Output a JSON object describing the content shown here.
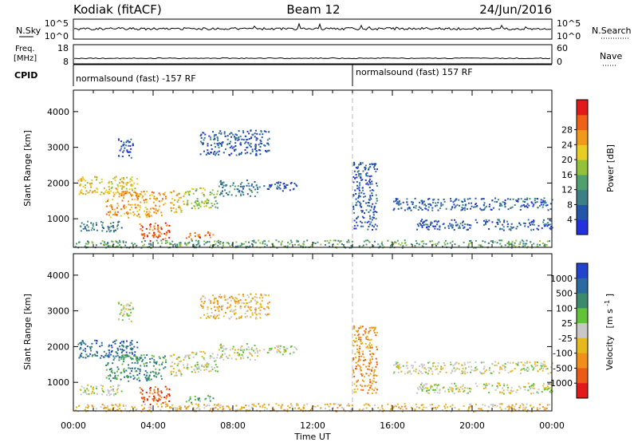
{
  "header": {
    "station": "Kodiak (fitACF)",
    "beam": "Beam 12",
    "date": "24/Jun/2016"
  },
  "strips": {
    "nsky": {
      "label": "N.Sky",
      "ticks_left": [
        "10^5",
        "10^0"
      ],
      "ticks_right": [
        "10^5",
        "10^0"
      ],
      "right_label": "N.Search"
    },
    "freq": {
      "label_line1": "Freq.",
      "label_line2": "[MHz]",
      "ticks_left": [
        "18",
        "8"
      ],
      "ticks_right": [
        "60",
        "0"
      ],
      "right_label": "Nave"
    },
    "cpid": {
      "label": "CPID",
      "segment1": "normalsound (fast) -157 RF",
      "segment2": "normalsound (fast) 157 RF"
    }
  },
  "time_axis": {
    "label": "Time UT",
    "ticks": [
      "00:00",
      "04:00",
      "08:00",
      "12:00",
      "16:00",
      "20:00",
      "00:00"
    ],
    "hours": [
      0,
      4,
      8,
      12,
      16,
      20,
      24
    ],
    "cpid_change_hour": 14
  },
  "chart_data": [
    {
      "type": "heatmap",
      "name": "power",
      "ylabel": "Slant Range [km]",
      "xlim": [
        0,
        24
      ],
      "ylim": [
        200,
        4600
      ],
      "yticks": [
        1000,
        2000,
        3000,
        4000
      ],
      "colorbar": {
        "label": "Power [dB]",
        "ticks": [
          "4",
          "8",
          "12",
          "16",
          "20",
          "24",
          "28"
        ],
        "colors": [
          "#2233dd",
          "#2255aa",
          "#3d7f86",
          "#4fa06c",
          "#93c23a",
          "#e7cd24",
          "#f09a1c",
          "#ef6018",
          "#e31a1c"
        ]
      },
      "features": [
        {
          "t0": 0.2,
          "t1": 3.2,
          "r0": 1700,
          "r1": 2200,
          "level": 5
        },
        {
          "t0": 1.6,
          "t1": 4.6,
          "r0": 1050,
          "r1": 1800,
          "level": 6
        },
        {
          "t0": 3.2,
          "t1": 4.8,
          "r0": 400,
          "r1": 900,
          "level": 7
        },
        {
          "t0": 4.8,
          "t1": 5.6,
          "r0": 1200,
          "r1": 1800,
          "level": 5
        },
        {
          "t0": 5.6,
          "t1": 7.2,
          "r0": 1300,
          "r1": 1900,
          "level": 4
        },
        {
          "t0": 7.2,
          "t1": 9.2,
          "r0": 1650,
          "r1": 2100,
          "level": 2
        },
        {
          "t0": 9.2,
          "t1": 11.2,
          "r0": 1800,
          "r1": 2050,
          "level": 1
        },
        {
          "t0": 5.6,
          "t1": 7.0,
          "r0": 450,
          "r1": 650,
          "level": 7
        },
        {
          "t0": 0.2,
          "t1": 2.4,
          "r0": 650,
          "r1": 950,
          "level": 2
        },
        {
          "t0": 6.3,
          "t1": 9.8,
          "r0": 2800,
          "r1": 3500,
          "level": 1
        },
        {
          "t0": 2.2,
          "t1": 3.0,
          "r0": 2700,
          "r1": 3300,
          "level": 1
        },
        {
          "t0": 14.0,
          "t1": 15.2,
          "r0": 700,
          "r1": 2600,
          "level": 1
        },
        {
          "t0": 16.0,
          "t1": 24.0,
          "r0": 1250,
          "r1": 1600,
          "level": 1
        },
        {
          "t0": 17.2,
          "t1": 24.0,
          "r0": 700,
          "r1": 1000,
          "level": 1
        },
        {
          "t0": 0.0,
          "t1": 24.0,
          "r0": 200,
          "r1": 420,
          "level": 3
        }
      ]
    },
    {
      "type": "heatmap",
      "name": "velocity",
      "ylabel": "Slant Range [km]",
      "xlim": [
        0,
        24
      ],
      "ylim": [
        200,
        4600
      ],
      "yticks": [
        1000,
        2000,
        3000,
        4000
      ],
      "colorbar": {
        "label_main": "Velocity",
        "label_unit": "[m s",
        "label_exp": "-1",
        "label_close": "]",
        "ticks": [
          "1000",
          "500",
          "100",
          "25",
          "-25",
          "-100",
          "-500",
          "-1000"
        ],
        "colors": [
          "#2244cc",
          "#2a6aa0",
          "#3b8a6e",
          "#63c23a",
          "#c8c8c8",
          "#e5b81c",
          "#f0901a",
          "#ec5a18",
          "#e31a1c"
        ]
      },
      "features": [
        {
          "t0": 0.2,
          "t1": 3.2,
          "r0": 1700,
          "r1": 2200,
          "level": 1
        },
        {
          "t0": 1.6,
          "t1": 4.6,
          "r0": 1050,
          "r1": 1800,
          "level": 2
        },
        {
          "t0": 3.2,
          "t1": 4.8,
          "r0": 400,
          "r1": 900,
          "level": 7
        },
        {
          "t0": 4.8,
          "t1": 5.6,
          "r0": 1200,
          "r1": 1800,
          "level": 4
        },
        {
          "t0": 5.6,
          "t1": 7.2,
          "r0": 1300,
          "r1": 1900,
          "level": 4
        },
        {
          "t0": 7.2,
          "t1": 9.2,
          "r0": 1650,
          "r1": 2100,
          "level": 4
        },
        {
          "t0": 9.2,
          "t1": 11.2,
          "r0": 1800,
          "r1": 2050,
          "level": 4
        },
        {
          "t0": 5.6,
          "t1": 7.0,
          "r0": 450,
          "r1": 650,
          "level": 3
        },
        {
          "t0": 0.2,
          "t1": 2.4,
          "r0": 650,
          "r1": 950,
          "level": 4
        },
        {
          "t0": 6.3,
          "t1": 9.8,
          "r0": 2800,
          "r1": 3500,
          "level": 5
        },
        {
          "t0": 2.2,
          "t1": 3.0,
          "r0": 2700,
          "r1": 3300,
          "level": 4
        },
        {
          "t0": 14.0,
          "t1": 15.2,
          "r0": 700,
          "r1": 2600,
          "level": 6
        },
        {
          "t0": 16.0,
          "t1": 24.0,
          "r0": 1250,
          "r1": 1600,
          "level": 4
        },
        {
          "t0": 17.2,
          "t1": 24.0,
          "r0": 700,
          "r1": 1000,
          "level": 4
        },
        {
          "t0": 0.0,
          "t1": 24.0,
          "r0": 200,
          "r1": 420,
          "level": 5
        }
      ]
    }
  ]
}
